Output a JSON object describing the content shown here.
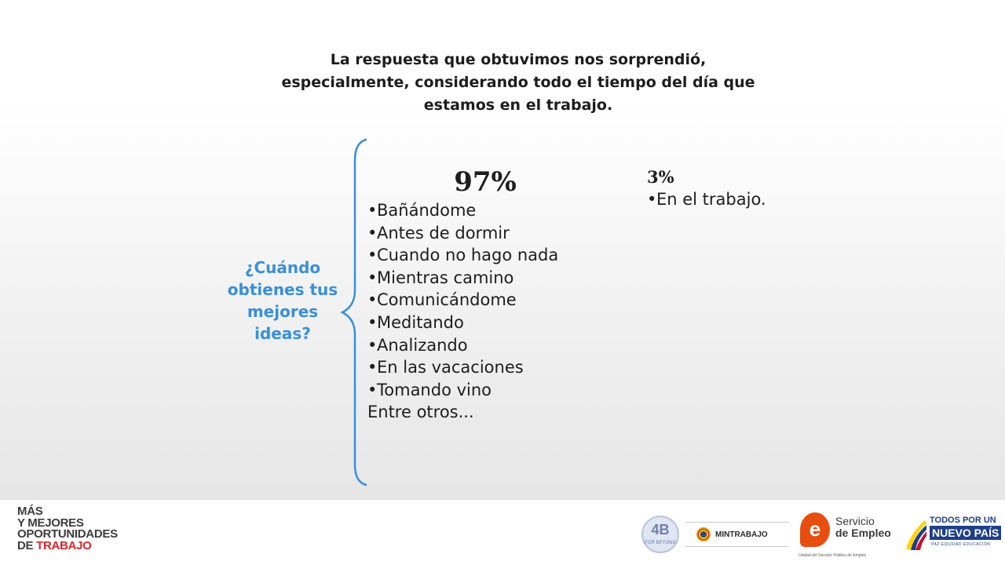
{
  "headline": {
    "line1": "La respuesta que obtuvimos nos sorprendió,",
    "line2": "especialmente, considerando todo el tiempo del día que",
    "line3": "estamos en el trabajo."
  },
  "question": {
    "line1": "¿Cuándo",
    "line2": "obtienes tus",
    "line3": "mejores",
    "line4": "ideas?"
  },
  "majority": {
    "percent": "97%",
    "bullet": "•",
    "items": [
      "Bañándome",
      "Antes de dormir",
      "Cuando no hago nada",
      "Mientras camino",
      "Comunicándome",
      "Meditando",
      "Analizando",
      "En las vacaciones",
      "Tomando vino"
    ],
    "footer_note": "Entre otros..."
  },
  "minority": {
    "percent": "3%",
    "items": [
      "En el trabajo."
    ]
  },
  "footer": {
    "brand_left": {
      "line1": "MÁS",
      "line2": "Y MEJORES",
      "line3": "OPORTUNIDADES",
      "line4_prefix": "DE ",
      "line4_highlight": "TRABAJO"
    },
    "logo_4b": {
      "big": "4B",
      "small": "FOR BEYOND"
    },
    "mintrabajo": "MINTRABAJO",
    "servicio": {
      "mark": "e",
      "line1": "Servicio",
      "line2": "de Empleo",
      "sub": "Unidad del Servicio Público de Empleo"
    },
    "tpunp": {
      "line1": "TODOS POR UN",
      "line2": "NUEVO PAÍS",
      "line3": "PAZ  EQUIDAD  EDUCACIÓN"
    }
  },
  "colors": {
    "accent_blue": "#3a8fd6",
    "brand_red": "#d7262c",
    "servicio_orange": "#e84e10",
    "tpunp_blue": "#1f3f87"
  }
}
